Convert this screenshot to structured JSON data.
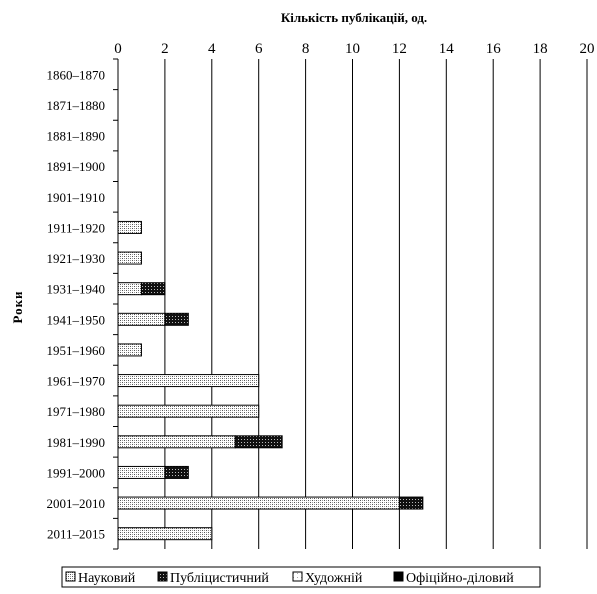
{
  "chart_data": {
    "type": "bar",
    "orientation": "horizontal",
    "stacked": true,
    "title": "Кількість публікацій, од.",
    "ylabel": "Роки",
    "xlim": [
      0,
      20
    ],
    "xticks": [
      0,
      2,
      4,
      6,
      8,
      10,
      12,
      14,
      16,
      18,
      20
    ],
    "grid": true,
    "legend_position": "bottom",
    "categories": [
      "1860–1870",
      "1871–1880",
      "1881–1890",
      "1891–1900",
      "1901–1910",
      "1911–1920",
      "1921–1930",
      "1931–1940",
      "1941–1950",
      "1951–1960",
      "1961–1970",
      "1971–1980",
      "1981–1990",
      "1991–2000",
      "2001–2010",
      "2011–2015"
    ],
    "series": [
      {
        "name": "Науковий",
        "values": [
          0,
          0,
          0,
          0,
          0,
          1,
          1,
          1,
          2,
          1,
          6,
          6,
          5,
          2,
          12,
          4
        ]
      },
      {
        "name": "Публіцистичний",
        "values": [
          0,
          0,
          0,
          0,
          0,
          0,
          0,
          1,
          1,
          0,
          0,
          0,
          2,
          1,
          1,
          0
        ]
      },
      {
        "name": "Художній",
        "values": [
          0,
          0,
          0,
          0,
          0,
          0,
          0,
          0,
          0,
          0,
          0,
          0,
          0,
          0,
          0,
          0
        ]
      },
      {
        "name": "Офіційно-діловий",
        "values": [
          0,
          0,
          0,
          0,
          0,
          0,
          0,
          0,
          0,
          0,
          0,
          0,
          0,
          0,
          0,
          0
        ]
      }
    ],
    "colors": [
      "#dcdcdc",
      "#3a3a3a",
      "#f2f2f2",
      "#000000"
    ]
  }
}
